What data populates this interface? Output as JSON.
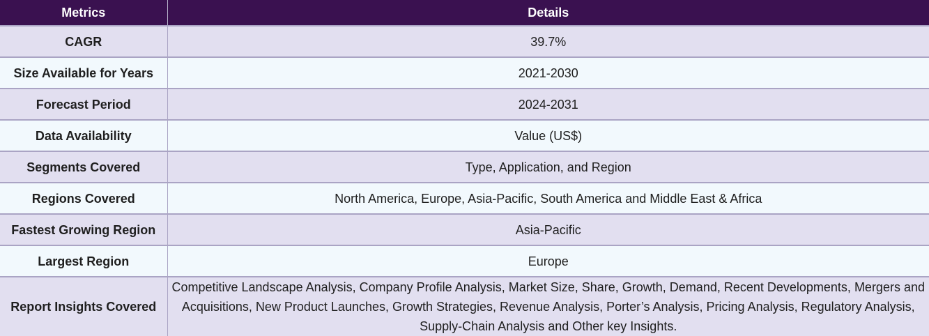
{
  "table": {
    "headers": [
      "Metrics",
      "Details"
    ],
    "rows": [
      {
        "metric": "CAGR",
        "details": "39.7%"
      },
      {
        "metric": "Size Available for Years",
        "details": "2021-2030"
      },
      {
        "metric": "Forecast Period",
        "details": "2024-2031"
      },
      {
        "metric": "Data Availability",
        "details": "Value (US$)"
      },
      {
        "metric": "Segments Covered",
        "details": "Type, Application, and Region"
      },
      {
        "metric": "Regions Covered",
        "details": "North America, Europe, Asia-Pacific, South America and Middle East & Africa"
      },
      {
        "metric": "Fastest Growing Region",
        "details": "Asia-Pacific"
      },
      {
        "metric": "Largest Region",
        "details": "Europe"
      },
      {
        "metric": "Report Insights Covered",
        "details": "Competitive Landscape Analysis, Company Profile Analysis, Market Size, Share, Growth, Demand, Recent Developments, Mergers and Acquisitions, New Product Launches, Growth Strategies, Revenue Analysis, Porter’s Analysis, Pricing Analysis, Regulatory Analysis, Supply-Chain Analysis and Other key Insights."
      }
    ]
  },
  "colors": {
    "header_bg": "#3a1150",
    "row_odd_bg": "#e2dff0",
    "row_even_bg": "#f2f9fd",
    "border": "#aaa4c4"
  }
}
